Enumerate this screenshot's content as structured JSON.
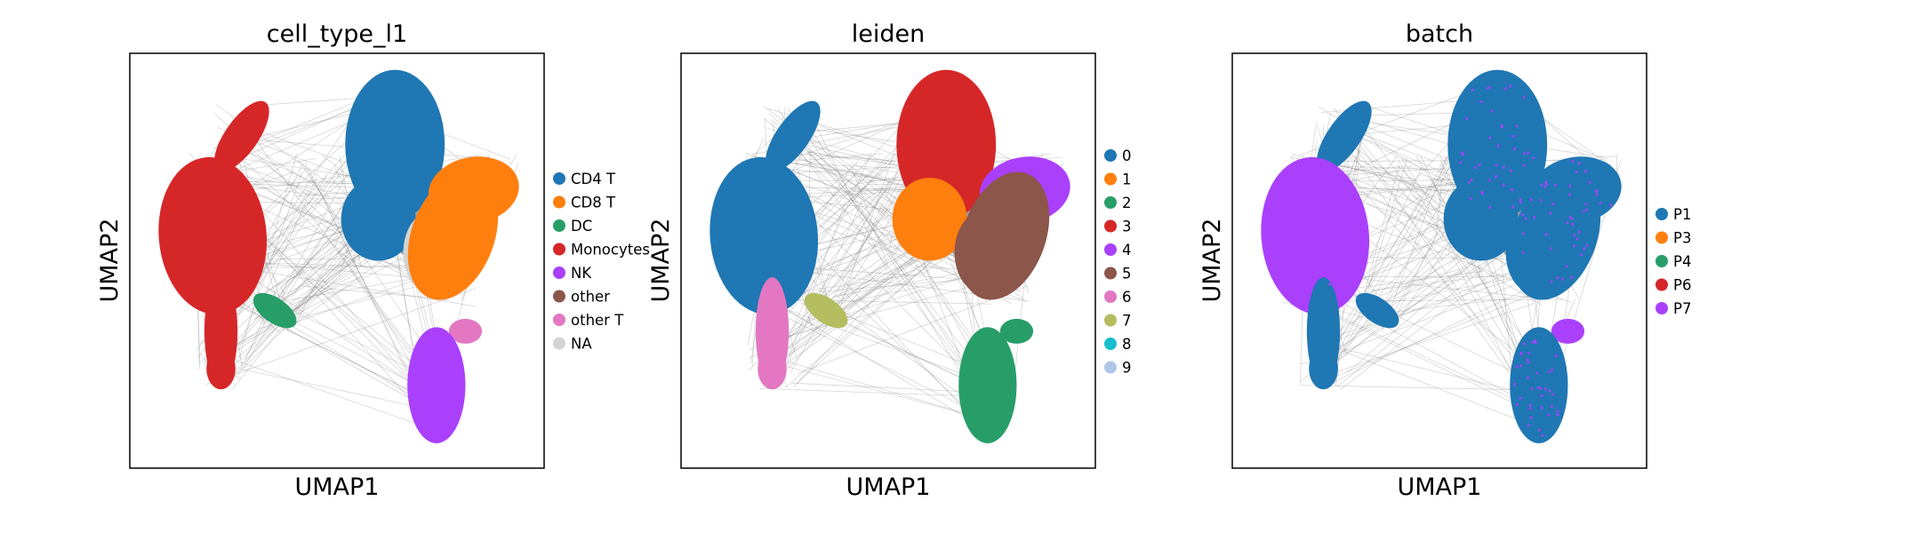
{
  "chart_data": [
    {
      "type": "scatter",
      "title": "cell_type_l1",
      "xlabel": "UMAP1",
      "ylabel": "UMAP2",
      "grid": false,
      "legend_position": "right",
      "series": [
        {
          "name": "CD4 T",
          "color": "#1f77b4"
        },
        {
          "name": "CD8 T",
          "color": "#ff7f0e"
        },
        {
          "name": "DC",
          "color": "#279e68"
        },
        {
          "name": "Monocytes",
          "color": "#d62728"
        },
        {
          "name": "NK",
          "color": "#aa40fc"
        },
        {
          "name": "other",
          "color": "#8c564b"
        },
        {
          "name": "other T",
          "color": "#e377c2"
        },
        {
          "name": "NA",
          "color": "#d3d3d3"
        }
      ]
    },
    {
      "type": "scatter",
      "title": "leiden",
      "xlabel": "UMAP1",
      "ylabel": "UMAP2",
      "grid": false,
      "legend_position": "right",
      "series": [
        {
          "name": "0",
          "color": "#1f77b4"
        },
        {
          "name": "1",
          "color": "#ff7f0e"
        },
        {
          "name": "2",
          "color": "#279e68"
        },
        {
          "name": "3",
          "color": "#d62728"
        },
        {
          "name": "4",
          "color": "#aa40fc"
        },
        {
          "name": "5",
          "color": "#8c564b"
        },
        {
          "name": "6",
          "color": "#e377c2"
        },
        {
          "name": "7",
          "color": "#b5bd61"
        },
        {
          "name": "8",
          "color": "#17becf"
        },
        {
          "name": "9",
          "color": "#aec7e8"
        }
      ]
    },
    {
      "type": "scatter",
      "title": "batch",
      "xlabel": "UMAP1",
      "ylabel": "UMAP2",
      "grid": false,
      "legend_position": "right",
      "series": [
        {
          "name": "P1",
          "color": "#1f77b4"
        },
        {
          "name": "P3",
          "color": "#ff7f0e"
        },
        {
          "name": "P4",
          "color": "#279e68"
        },
        {
          "name": "P6",
          "color": "#d62728"
        },
        {
          "name": "P7",
          "color": "#aa40fc"
        }
      ]
    }
  ]
}
